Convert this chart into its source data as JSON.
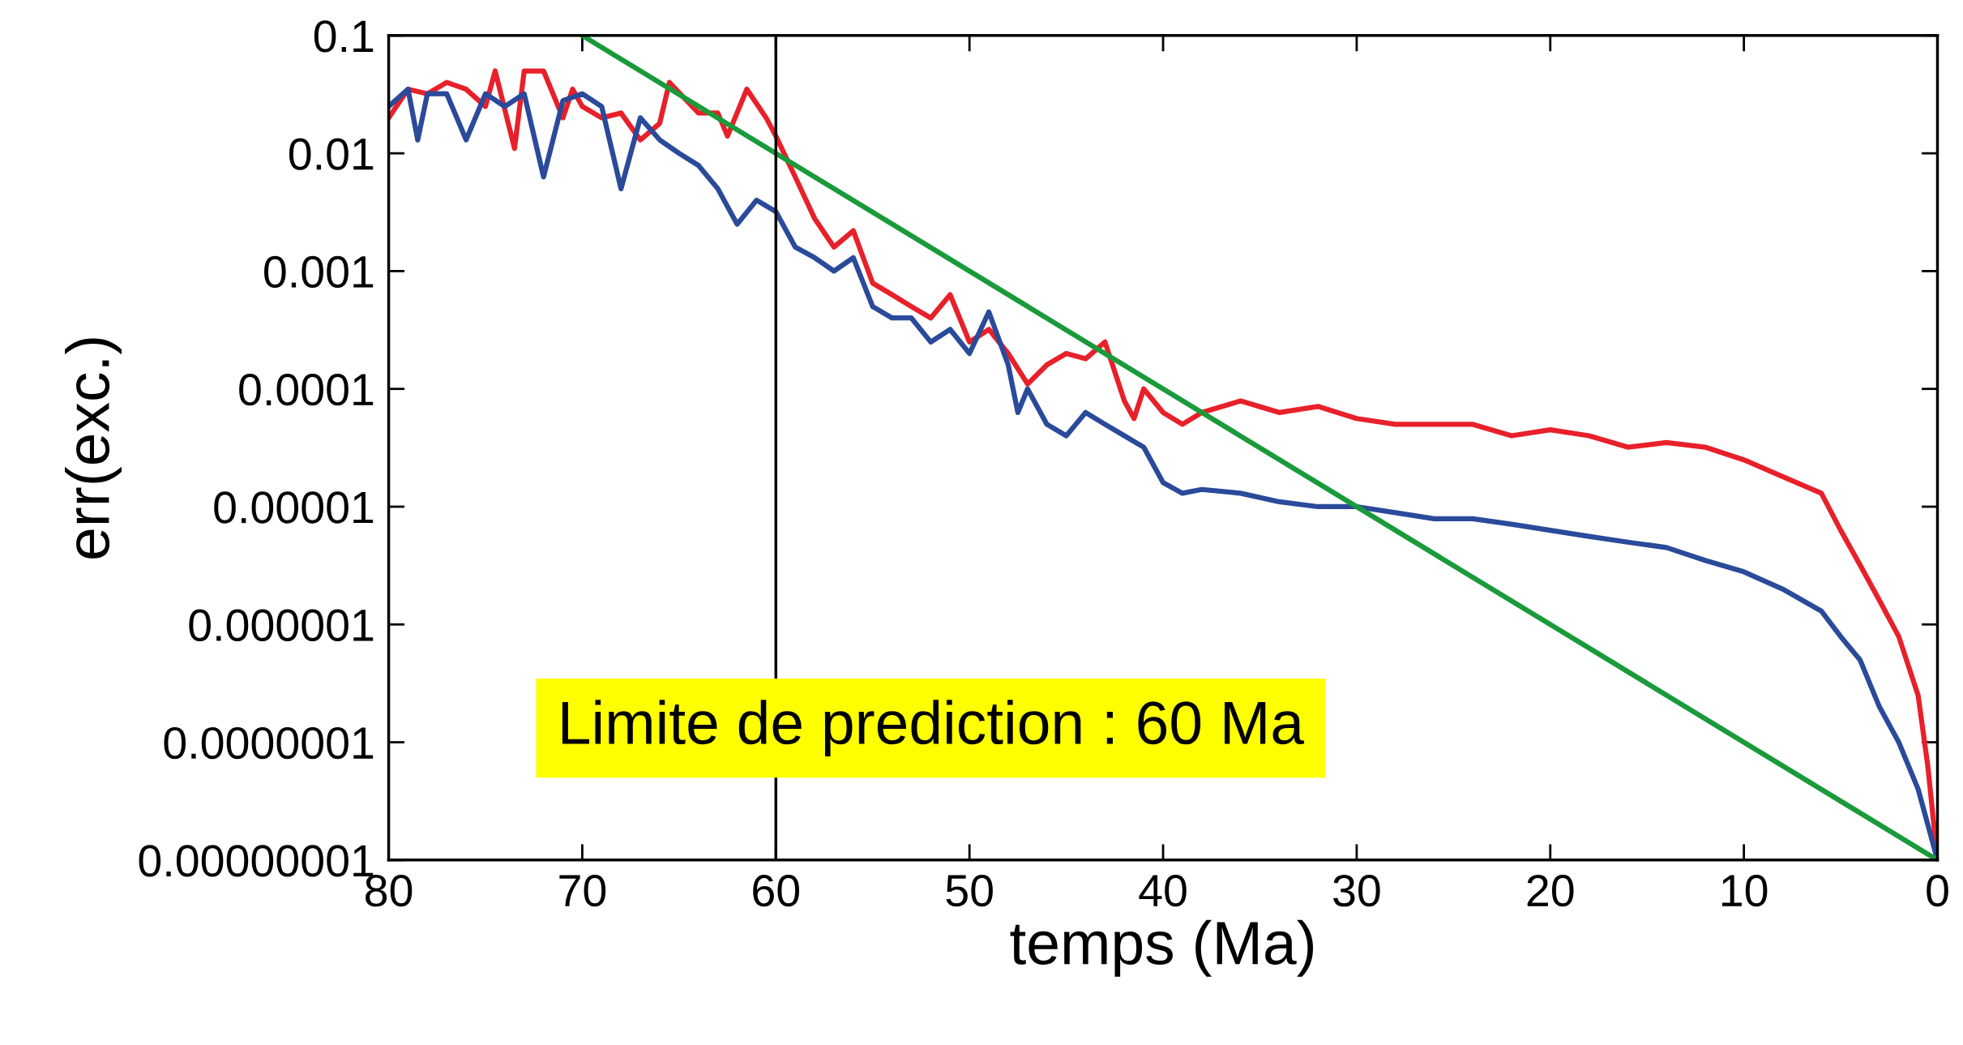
{
  "chart_data": {
    "type": "line",
    "xlabel": "temps (Ma)",
    "ylabel": "err(exc.)",
    "log": "y",
    "xlim": [
      80,
      0
    ],
    "xticks": [
      80,
      70,
      60,
      50,
      40,
      30,
      20,
      10,
      0
    ],
    "ylim": [
      1e-08,
      0.1
    ],
    "yticks": [
      {
        "value": 1e-08,
        "label": "0.00000001"
      },
      {
        "value": 1e-07,
        "label": "0.0000001"
      },
      {
        "value": 1e-06,
        "label": "0.000001"
      },
      {
        "value": 1e-05,
        "label": "0.00001"
      },
      {
        "value": 0.0001,
        "label": "0.0001"
      },
      {
        "value": 0.001,
        "label": "0.001"
      },
      {
        "value": 0.01,
        "label": "0.01"
      },
      {
        "value": 0.1,
        "label": "0.1"
      }
    ],
    "grid": false,
    "marker": "none",
    "line_style": "solid",
    "series": [
      {
        "color": "#e8202a",
        "x": [
          80,
          79,
          78,
          77,
          76,
          75,
          74.5,
          73.5,
          73,
          72,
          71,
          70.5,
          70,
          69,
          68,
          67,
          66,
          65.5,
          64,
          63,
          62.5,
          61.5,
          60.5,
          60,
          59,
          58,
          57,
          56,
          55,
          54,
          53,
          52,
          51,
          50,
          49,
          48,
          47,
          46,
          45,
          44,
          43,
          42,
          41.5,
          41,
          40,
          39,
          38,
          36,
          34,
          32,
          30,
          28,
          26,
          24,
          22,
          20,
          18,
          16,
          14,
          12,
          10,
          8,
          6,
          5,
          4,
          3,
          2,
          1,
          0.5,
          0
        ],
        "values": [
          0.02,
          0.035,
          0.032,
          0.04,
          0.035,
          0.025,
          0.05,
          0.011,
          0.05,
          0.05,
          0.02,
          0.035,
          0.025,
          0.02,
          0.022,
          0.013,
          0.018,
          0.04,
          0.022,
          0.022,
          0.014,
          0.035,
          0.02,
          0.014,
          0.0063,
          0.0028,
          0.0016,
          0.0022,
          0.00079,
          0.00063,
          0.0005,
          0.0004,
          0.00063,
          0.00025,
          0.00032,
          0.0002,
          0.00011,
          0.00016,
          0.0002,
          0.00018,
          0.00025,
          7.9e-05,
          5.6e-05,
          0.0001,
          6.3e-05,
          5e-05,
          6.3e-05,
          7.9e-05,
          6.3e-05,
          7.1e-05,
          5.6e-05,
          5e-05,
          5e-05,
          5e-05,
          4e-05,
          4.5e-05,
          4e-05,
          3.2e-05,
          3.5e-05,
          3.2e-05,
          2.5e-05,
          1.8e-05,
          1.3e-05,
          6.3e-06,
          3.2e-06,
          1.6e-06,
          7.9e-07,
          2.5e-07,
          6.3e-08,
          1e-08
        ]
      },
      {
        "color": "#2a4a9a",
        "x": [
          80,
          79,
          78.5,
          78,
          77,
          76,
          75,
          74,
          73,
          72,
          71,
          70,
          69,
          68,
          67,
          66,
          65,
          64,
          63,
          62,
          61,
          60,
          59,
          58,
          57,
          56,
          55,
          54,
          53,
          52,
          51,
          50,
          49,
          48,
          47.5,
          47,
          46,
          45,
          44,
          43,
          42,
          41,
          40,
          39,
          38,
          36,
          34,
          32,
          30,
          28,
          26,
          24,
          22,
          20,
          18,
          16,
          14,
          12,
          10,
          8,
          6,
          5,
          4,
          3,
          2,
          1,
          0
        ],
        "values": [
          0.025,
          0.035,
          0.013,
          0.032,
          0.032,
          0.013,
          0.032,
          0.025,
          0.032,
          0.0063,
          0.028,
          0.032,
          0.025,
          0.005,
          0.02,
          0.013,
          0.01,
          0.0079,
          0.005,
          0.0025,
          0.004,
          0.0032,
          0.0016,
          0.0013,
          0.001,
          0.0013,
          0.0005,
          0.0004,
          0.0004,
          0.00025,
          0.00032,
          0.0002,
          0.00045,
          0.00016,
          6.3e-05,
          0.0001,
          5e-05,
          4e-05,
          6.3e-05,
          5e-05,
          4e-05,
          3.2e-05,
          1.6e-05,
          1.3e-05,
          1.4e-05,
          1.3e-05,
          1.1e-05,
          1e-05,
          1e-05,
          8.9e-06,
          7.9e-06,
          7.9e-06,
          7.1e-06,
          6.3e-06,
          5.6e-06,
          5e-06,
          4.5e-06,
          3.5e-06,
          2.8e-06,
          2e-06,
          1.3e-06,
          7.9e-07,
          5e-07,
          2e-07,
          1e-07,
          4e-08,
          1e-08
        ]
      },
      {
        "color": "#1a9a3a",
        "x": [
          70,
          0
        ],
        "values": [
          0.1,
          1e-08
        ]
      }
    ],
    "ref_lines": [
      {
        "axis": "x",
        "value": 60,
        "color": "#000000"
      }
    ],
    "annotations": [
      "Limite de prediction : 60 Ma"
    ]
  }
}
